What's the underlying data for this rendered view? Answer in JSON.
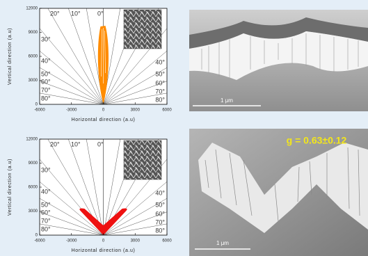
{
  "panels": [
    {
      "y_label": "Vertical direction (a.u)",
      "x_label": "Horizontal direction (a.u)",
      "yticks": [
        12000,
        9000,
        6000,
        3000,
        0
      ],
      "xticks": [
        -6000,
        -3000,
        0,
        3000,
        6000
      ],
      "angles_top": [
        "20°",
        "10°",
        "0°"
      ],
      "angles_left": [
        "30°",
        "40°",
        "50°",
        "60°",
        "70°",
        "80°"
      ],
      "angles_right": [
        "40°",
        "50°",
        "60°",
        "70°",
        "80°"
      ]
    },
    {
      "y_label": "Vertical direction (a.u)",
      "x_label": "Horizontal direction (a.u)",
      "yticks": [
        12000,
        9000,
        6000,
        3000,
        0
      ],
      "xticks": [
        -6000,
        -3000,
        0,
        3000,
        6000
      ],
      "angles_top": [
        "20°",
        "10°",
        "0°"
      ],
      "angles_left": [
        "30°",
        "40°",
        "50°",
        "60°",
        "70°",
        "80°"
      ],
      "angles_right": [
        "40°",
        "50°",
        "60°",
        "70°",
        "80°"
      ]
    }
  ],
  "images": [
    {
      "scale_label": "1 μm"
    },
    {
      "scale_label": "1 μm",
      "annotation": "g = 0.63±0.12"
    }
  ]
}
